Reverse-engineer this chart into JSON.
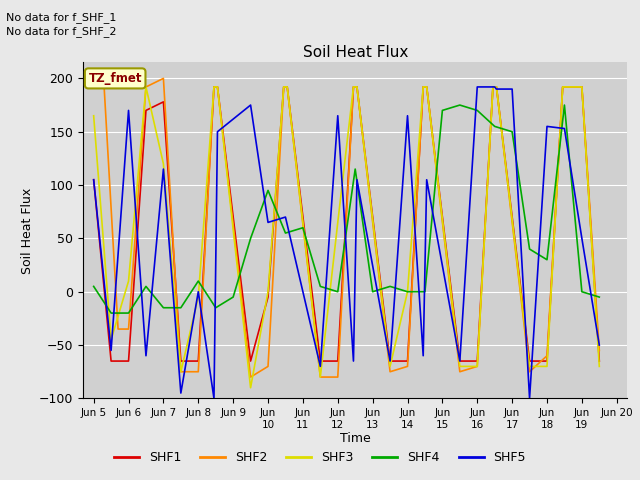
{
  "title": "Soil Heat Flux",
  "ylabel": "Soil Heat Flux",
  "xlabel": "Time",
  "note1": "No data for f_SHF_1",
  "note2": "No data for f_SHF_2",
  "legend_label": "TZ_fmet",
  "xlim_start": 4.7,
  "xlim_end": 20.3,
  "ylim": [
    -100,
    215
  ],
  "yticks": [
    -100,
    -50,
    0,
    50,
    100,
    150,
    200
  ],
  "xtick_positions": [
    5,
    6,
    7,
    8,
    9,
    10,
    11,
    12,
    13,
    14,
    15,
    16,
    17,
    18,
    19,
    20
  ],
  "xtick_labels": [
    "Jun 5",
    "Jun 6",
    "Jun 7",
    "Jun 8",
    "Jun 9",
    "Jun\n10",
    "Jun\n11",
    "Jun\n12",
    "Jun\n13",
    "Jun\n14",
    "Jun\n15",
    "Jun\n16",
    "Jun\n17",
    "Jun\n18",
    "Jun\n19",
    "Jun 20"
  ],
  "colors": {
    "SHF1": "#dd0000",
    "SHF2": "#ff8800",
    "SHF3": "#dddd00",
    "SHF4": "#00aa00",
    "SHF5": "#0000dd"
  },
  "series": {
    "SHF1": {
      "x": [
        5.0,
        5.5,
        6.0,
        6.5,
        7.0,
        7.5,
        8.0,
        8.45,
        8.55,
        9.5,
        10.0,
        10.45,
        10.55,
        11.5,
        12.0,
        12.45,
        12.55,
        13.5,
        14.0,
        14.45,
        14.55,
        15.5,
        16.0,
        16.45,
        16.55,
        17.5,
        18.0,
        18.45,
        18.55,
        19.0,
        19.5
      ],
      "y": [
        105,
        -65,
        -65,
        170,
        178,
        -65,
        -65,
        192,
        192,
        -65,
        -5,
        192,
        192,
        -65,
        -65,
        192,
        192,
        -65,
        -65,
        192,
        192,
        -65,
        -65,
        192,
        192,
        -65,
        -65,
        192,
        192,
        192,
        -65
      ]
    },
    "SHF2": {
      "x": [
        5.0,
        5.3,
        5.7,
        6.0,
        6.5,
        7.0,
        7.5,
        8.0,
        8.45,
        8.55,
        9.5,
        10.0,
        10.45,
        10.55,
        11.5,
        12.0,
        12.45,
        12.55,
        13.5,
        14.0,
        14.45,
        14.55,
        15.5,
        16.0,
        16.45,
        16.55,
        17.5,
        18.0,
        18.45,
        18.55,
        19.0,
        19.5
      ],
      "y": [
        192,
        192,
        -35,
        -35,
        192,
        200,
        -75,
        -75,
        192,
        192,
        -80,
        -70,
        192,
        192,
        -80,
        -80,
        192,
        192,
        -75,
        -70,
        192,
        192,
        -75,
        -70,
        192,
        192,
        -75,
        -60,
        192,
        192,
        192,
        -55
      ]
    },
    "SHF3": {
      "x": [
        5.0,
        5.5,
        6.0,
        6.5,
        7.0,
        7.5,
        8.0,
        8.45,
        8.55,
        9.5,
        10.0,
        10.45,
        10.55,
        11.0,
        11.5,
        12.0,
        12.45,
        12.55,
        13.5,
        14.0,
        14.45,
        14.55,
        15.5,
        16.0,
        16.45,
        16.55,
        17.5,
        18.0,
        18.45,
        18.55,
        19.0,
        19.5
      ],
      "y": [
        165,
        -45,
        10,
        192,
        120,
        -75,
        -5,
        192,
        192,
        -90,
        0,
        192,
        192,
        65,
        -80,
        65,
        192,
        192,
        -70,
        0,
        192,
        192,
        -70,
        -70,
        192,
        192,
        -70,
        -70,
        192,
        192,
        192,
        -70
      ]
    },
    "SHF4": {
      "x": [
        5.0,
        5.5,
        6.0,
        6.5,
        7.0,
        7.5,
        8.0,
        8.5,
        9.0,
        9.5,
        10.0,
        10.5,
        11.0,
        11.5,
        12.0,
        12.5,
        13.0,
        13.5,
        14.0,
        14.5,
        15.0,
        15.5,
        16.0,
        16.5,
        17.0,
        17.5,
        18.0,
        18.5,
        19.0,
        19.5
      ],
      "y": [
        5,
        -20,
        -20,
        5,
        -15,
        -15,
        10,
        -15,
        -5,
        50,
        95,
        55,
        60,
        5,
        0,
        115,
        0,
        5,
        0,
        0,
        170,
        175,
        170,
        155,
        150,
        40,
        30,
        175,
        0,
        -5
      ]
    },
    "SHF5": {
      "x": [
        5.0,
        5.5,
        6.0,
        6.5,
        7.0,
        7.5,
        8.0,
        8.45,
        8.55,
        9.5,
        10.0,
        10.5,
        11.0,
        11.5,
        12.0,
        12.45,
        12.55,
        13.5,
        14.0,
        14.45,
        14.55,
        15.5,
        16.0,
        16.3,
        16.5,
        16.55,
        17.0,
        17.5,
        18.0,
        18.5,
        19.0,
        19.5
      ],
      "y": [
        105,
        -55,
        170,
        -60,
        115,
        -95,
        0,
        -100,
        150,
        175,
        65,
        70,
        0,
        -70,
        165,
        -65,
        105,
        -65,
        165,
        -60,
        105,
        -65,
        192,
        192,
        192,
        190,
        190,
        -100,
        155,
        153,
        50,
        -50
      ]
    }
  },
  "legend_entries": [
    "SHF1",
    "SHF2",
    "SHF3",
    "SHF4",
    "SHF5"
  ],
  "background_color": "#e8e8e8",
  "plot_bg_color": "#d0d0d0"
}
